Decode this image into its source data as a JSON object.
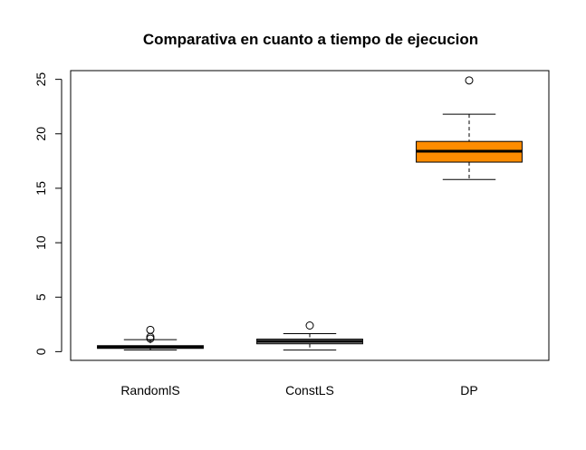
{
  "chart_data": {
    "type": "boxplot",
    "title": "Comparativa en cuanto a tiempo de ejecucion",
    "xlabel": "",
    "ylabel": "",
    "ylim": [
      -0.8,
      25.8
    ],
    "yticks": [
      0,
      5,
      10,
      15,
      20,
      25
    ],
    "ytick_labels": [
      "0",
      "5",
      "10",
      "15",
      "20",
      "25"
    ],
    "grid": false,
    "categories": [
      "RandomlS",
      "ConstLS",
      "DP"
    ],
    "boxes": [
      {
        "category": "RandomlS",
        "whisker_low": 0.15,
        "q1": 0.3,
        "median": 0.42,
        "q3": 0.55,
        "whisker_high": 1.1,
        "outliers": [
          1.2,
          1.35,
          2.0
        ],
        "fill": "#bebebe"
      },
      {
        "category": "ConstLS",
        "whisker_low": 0.15,
        "q1": 0.72,
        "median": 0.95,
        "q3": 1.15,
        "whisker_high": 1.65,
        "outliers": [
          2.4
        ],
        "fill": "#bebebe"
      },
      {
        "category": "DP",
        "whisker_low": 15.8,
        "q1": 17.4,
        "median": 18.4,
        "q3": 19.3,
        "whisker_high": 21.8,
        "outliers": [
          24.9
        ],
        "fill": "#ff8c00"
      }
    ]
  }
}
